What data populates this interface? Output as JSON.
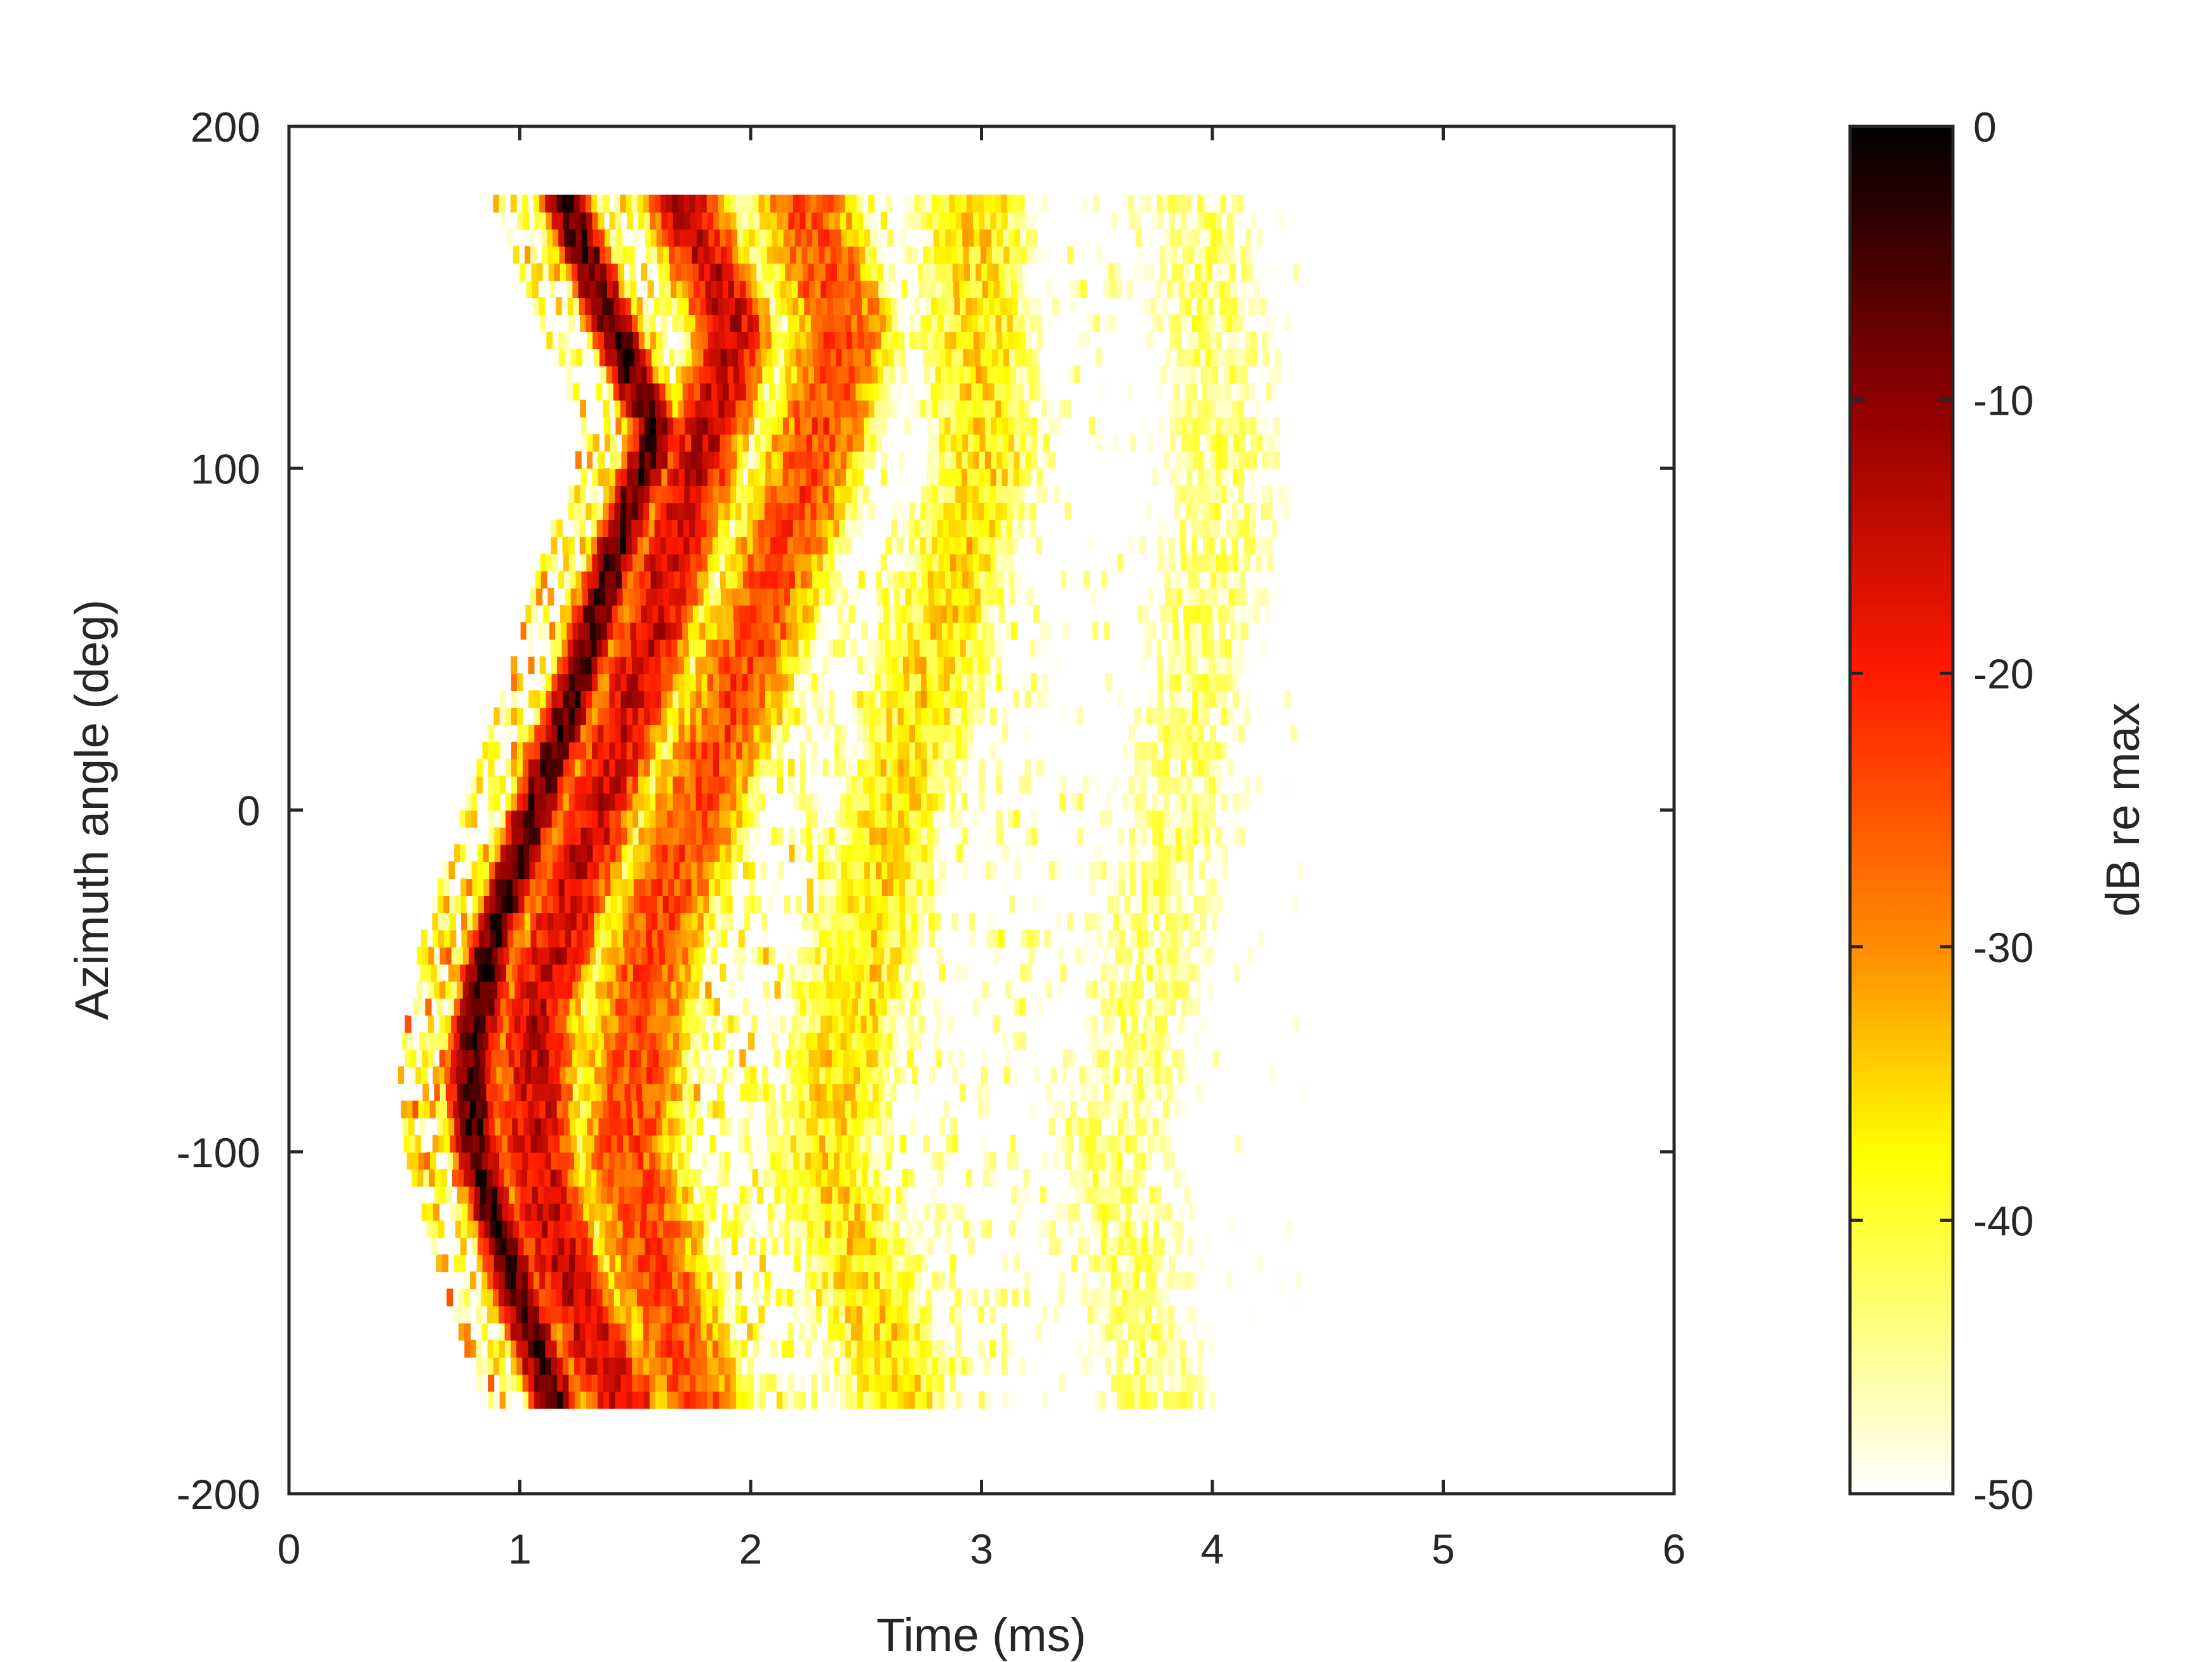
{
  "chart_data": {
    "type": "heatmap",
    "title": "",
    "xlabel": "Time (ms)",
    "ylabel": "Azimuth angle (deg)",
    "xlim": [
      0,
      6
    ],
    "ylim": [
      -200,
      200
    ],
    "x_ticks": [
      "0",
      "1",
      "2",
      "3",
      "4",
      "5",
      "6"
    ],
    "y_ticks": [
      "-200",
      "-100",
      "0",
      "100",
      "200"
    ],
    "colorbar": {
      "label": "dB re max",
      "range": [
        -50,
        0
      ],
      "ticks": [
        "0",
        "-10",
        "-20",
        "-30",
        "-40",
        "-50"
      ],
      "colormap": "hot (reversed): white at -50, yellow, orange, red, black at 0"
    },
    "data_extent": {
      "azimuth_min_deg": -175,
      "azimuth_max_deg": 180,
      "time_max_ms": 4.4
    },
    "features": [
      {
        "description": "direct arrival ridge (strongest, near 0 dB)",
        "curve": [
          [
            -175,
            1.15
          ],
          [
            -140,
            0.97
          ],
          [
            -100,
            0.8
          ],
          [
            -75,
            0.77
          ],
          [
            -40,
            0.86
          ],
          [
            0,
            1.05
          ],
          [
            40,
            1.25
          ],
          [
            80,
            1.42
          ],
          [
            110,
            1.58
          ],
          [
            140,
            1.4
          ],
          [
            180,
            1.17
          ]
        ],
        "level_db": -5
      },
      {
        "description": "first reflection",
        "curve": [
          [
            -175,
            1.45
          ],
          [
            -140,
            1.2
          ],
          [
            -100,
            1.05
          ],
          [
            -60,
            1.05
          ],
          [
            0,
            1.32
          ],
          [
            50,
            1.55
          ],
          [
            100,
            1.75
          ],
          [
            140,
            1.92
          ],
          [
            180,
            1.68
          ]
        ],
        "level_db": -15
      },
      {
        "description": "second reflection",
        "curve": [
          [
            -175,
            1.75
          ],
          [
            -100,
            1.45
          ],
          [
            -40,
            1.55
          ],
          [
            20,
            1.85
          ],
          [
            80,
            2.15
          ],
          [
            140,
            2.4
          ],
          [
            180,
            2.2
          ]
        ],
        "level_db": -24
      },
      {
        "description": "late reflections",
        "curve": [
          [
            -175,
            2.65
          ],
          [
            -100,
            2.3
          ],
          [
            0,
            2.6
          ],
          [
            100,
            3.0
          ],
          [
            180,
            2.95
          ]
        ],
        "level_db": -36
      },
      {
        "description": "decaying tail",
        "curve": [
          [
            -175,
            3.75
          ],
          [
            -100,
            3.55
          ],
          [
            0,
            3.85
          ],
          [
            100,
            4.05
          ],
          [
            180,
            3.9
          ]
        ],
        "level_db": -44
      }
    ]
  }
}
